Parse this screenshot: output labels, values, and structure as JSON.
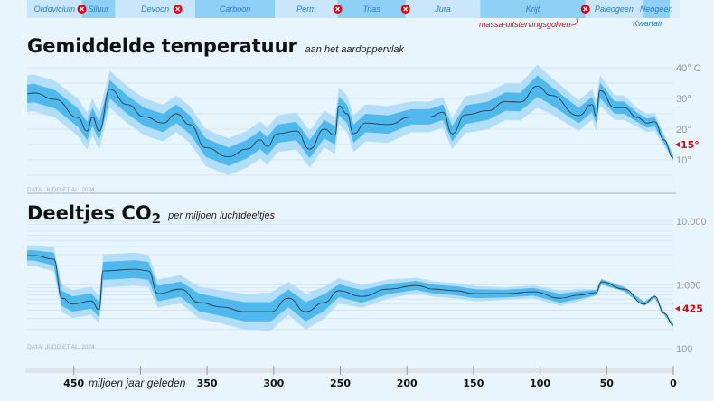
{
  "periods": [
    {
      "name": "Ordovicium",
      "from": 485,
      "to": 444,
      "shade": "#c9e6fb"
    },
    {
      "name": "Siluur",
      "from": 444,
      "to": 419,
      "shade": "#8fd0f6"
    },
    {
      "name": "Devoon",
      "from": 419,
      "to": 359,
      "shade": "#c9e6fb"
    },
    {
      "name": "Carboon",
      "from": 359,
      "to": 299,
      "shade": "#8fd0f6"
    },
    {
      "name": "Perm",
      "from": 299,
      "to": 252,
      "shade": "#c9e6fb"
    },
    {
      "name": "Trias",
      "from": 252,
      "to": 201,
      "shade": "#8fd0f6"
    },
    {
      "name": "Jura",
      "from": 201,
      "to": 145,
      "shade": "#c9e6fb"
    },
    {
      "name": "Krijt",
      "from": 145,
      "to": 66,
      "shade": "#8fd0f6"
    },
    {
      "name": "Paleogeen",
      "from": 66,
      "to": 23,
      "shade": "#c9e6fb"
    },
    {
      "name": "Neogeen",
      "from": 23,
      "to": 2.6,
      "shade": "#8fd0f6"
    }
  ],
  "kwartair_label": "Kwartair",
  "extinctions": [
    444,
    372,
    252,
    201,
    66
  ],
  "extinction_label": "massa-uitstervingsgolven",
  "colors": {
    "band_outer": "#b3defa",
    "band_inner": "#4fb8ec",
    "line": "#2b3d4a",
    "accent": "#e30613",
    "text_period": "#2a7fc0"
  },
  "chart_data": [
    {
      "type": "area",
      "title": "Gemiddelde temperatuur",
      "subtitle": "aan het aardoppervlak",
      "source": "DATA: JUDD ET AL. 2024",
      "y_unit": "°C",
      "ytick_labels": [
        "40° C",
        "30°",
        "20°",
        "10°"
      ],
      "yticks": [
        40,
        30,
        20,
        10
      ],
      "ylim": [
        0,
        45
      ],
      "grid": true,
      "current_marker": {
        "value": 15,
        "label": "15°"
      },
      "x": [
        485,
        480,
        464,
        447,
        440,
        436,
        431,
        423,
        410,
        397,
        383,
        373,
        363,
        351,
        334,
        320,
        310,
        305,
        297,
        283,
        273,
        262,
        254,
        251,
        245,
        240,
        231,
        214,
        197,
        183,
        173,
        166,
        156,
        139,
        126,
        115,
        102,
        92,
        71,
        61,
        58,
        55,
        44,
        37,
        27,
        20,
        14,
        7,
        0
      ],
      "y": [
        31.5,
        31.8,
        29.7,
        23.8,
        19.4,
        24,
        19.4,
        33,
        28,
        24,
        22,
        25,
        21.5,
        14,
        11,
        13.5,
        16.5,
        14.4,
        18.5,
        19.4,
        13.5,
        20,
        18,
        27.6,
        25,
        18.5,
        22,
        21.5,
        24,
        24,
        25.5,
        18.5,
        24.7,
        26,
        29,
        28.8,
        34,
        31,
        24.4,
        28,
        24.4,
        32.6,
        27,
        27,
        23.8,
        22,
        22.4,
        16.5,
        10.6
      ],
      "inner_halfwidth": [
        3,
        3,
        3,
        3,
        3,
        3,
        3,
        3,
        3,
        3,
        3,
        3,
        3,
        3,
        3,
        3,
        3,
        3,
        3,
        3,
        3,
        3,
        3,
        3,
        3,
        3,
        3,
        3,
        2.5,
        2.5,
        2.5,
        2.5,
        3,
        3,
        3,
        3,
        3.5,
        3,
        2.5,
        2.5,
        2.5,
        2.5,
        2,
        2,
        1.5,
        1.5,
        1.5,
        1,
        0.5
      ],
      "outer_halfwidth": [
        6,
        6,
        6,
        6,
        6,
        6,
        6,
        6,
        6,
        6,
        6,
        6,
        6,
        6,
        6,
        6,
        6,
        6,
        6,
        6,
        6,
        6,
        6,
        6,
        6,
        6,
        6,
        6,
        5,
        5,
        5,
        5,
        6,
        6,
        6,
        6,
        7,
        6,
        5,
        5,
        5,
        5,
        4,
        4,
        3,
        3,
        3,
        2,
        1
      ]
    },
    {
      "type": "area",
      "title": "Deeltjes CO₂",
      "title_main": "Deeltjes CO",
      "title_sub": "2",
      "subtitle": "per miljoen luchtdeeltjes",
      "source": "DATA: JUDD ET AL. 2024",
      "y_scale": "log",
      "ytick_labels": [
        "10.000",
        "1.000",
        "100"
      ],
      "yticks": [
        10000,
        1000,
        100
      ],
      "ylim": [
        80,
        10000
      ],
      "grid": true,
      "current_marker": {
        "value": 425,
        "label": "425"
      },
      "x": [
        485,
        480,
        465,
        459,
        451,
        437,
        431,
        428,
        404,
        394,
        387,
        370,
        356,
        339,
        322,
        302,
        289,
        276,
        262,
        251,
        234,
        214,
        193,
        180,
        163,
        149,
        126,
        105,
        85,
        71,
        58,
        54,
        37,
        22,
        14,
        7,
        0
      ],
      "y": [
        2900,
        2900,
        2540,
        620,
        500,
        560,
        410,
        1660,
        1770,
        1660,
        730,
        860,
        530,
        450,
        380,
        380,
        620,
        380,
        530,
        810,
        660,
        860,
        980,
        860,
        810,
        730,
        730,
        780,
        620,
        690,
        760,
        1120,
        860,
        500,
        660,
        360,
        234
      ],
      "inner_halfwidth_decades": [
        0.08,
        0.08,
        0.1,
        0.12,
        0.12,
        0.12,
        0.12,
        0.14,
        0.14,
        0.14,
        0.12,
        0.12,
        0.14,
        0.14,
        0.15,
        0.15,
        0.14,
        0.15,
        0.13,
        0.1,
        0.1,
        0.08,
        0.07,
        0.07,
        0.07,
        0.07,
        0.06,
        0.06,
        0.07,
        0.06,
        0.04,
        0.04,
        0.03,
        0.03,
        0.02,
        0.02,
        0.02
      ],
      "outer_halfwidth_decades": [
        0.16,
        0.16,
        0.2,
        0.22,
        0.22,
        0.22,
        0.22,
        0.26,
        0.26,
        0.25,
        0.22,
        0.22,
        0.25,
        0.26,
        0.28,
        0.3,
        0.26,
        0.28,
        0.25,
        0.2,
        0.18,
        0.15,
        0.12,
        0.12,
        0.12,
        0.12,
        0.1,
        0.1,
        0.12,
        0.1,
        0.05,
        0.05,
        0.04,
        0.04,
        0.03,
        0.03,
        0.03
      ]
    }
  ],
  "x_axis": {
    "ticks": [
      450,
      400,
      350,
      300,
      250,
      200,
      150,
      100,
      50,
      0
    ],
    "labels": [
      "450",
      "",
      "350",
      "300",
      "250",
      "200",
      "150",
      "100",
      "50",
      "0"
    ],
    "label": "miljoen jaar geleden",
    "xlim": [
      485,
      0
    ]
  }
}
